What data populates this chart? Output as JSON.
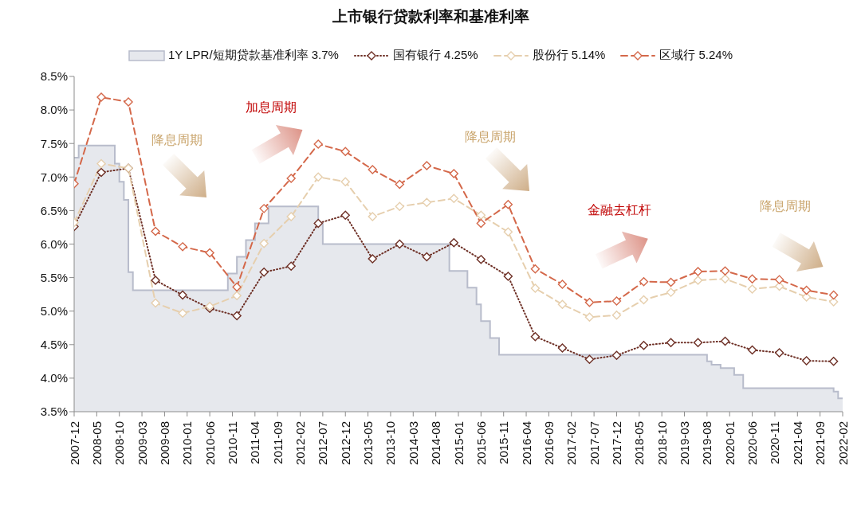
{
  "chart_data": {
    "type": "line",
    "title": "上市银行贷款利率和基准利率",
    "x": [
      "2007-12",
      "2008-06",
      "2008-12",
      "2009-06",
      "2009-12",
      "2010-06",
      "2010-12",
      "2011-06",
      "2011-12",
      "2012-06",
      "2012-12",
      "2013-06",
      "2013-12",
      "2014-06",
      "2014-12",
      "2015-06",
      "2015-12",
      "2016-06",
      "2016-12",
      "2017-06",
      "2017-12",
      "2018-06",
      "2018-12",
      "2019-06",
      "2019-12",
      "2020-06",
      "2020-12",
      "2021-06",
      "2021-12"
    ],
    "series": [
      {
        "name": "1Y LPR/短期贷款基准利率 3.7%",
        "type": "area",
        "color": "#b8bccb",
        "x": [
          "2007-12",
          "2008-01",
          "2008-01",
          "2008-09",
          "2008-09",
          "2008-10",
          "2008-10",
          "2008-11",
          "2008-11",
          "2008-12",
          "2008-12",
          "2009-01",
          "2009-01",
          "2010-10",
          "2010-10",
          "2010-12",
          "2010-12",
          "2011-02",
          "2011-02",
          "2011-04",
          "2011-04",
          "2011-07",
          "2011-07",
          "2012-06",
          "2012-06",
          "2012-07",
          "2012-07",
          "2014-11",
          "2014-11",
          "2015-03",
          "2015-03",
          "2015-05",
          "2015-05",
          "2015-06",
          "2015-06",
          "2015-08",
          "2015-08",
          "2015-10",
          "2015-10",
          "2019-08",
          "2019-08",
          "2019-09",
          "2019-09",
          "2019-11",
          "2019-11",
          "2020-02",
          "2020-02",
          "2020-04",
          "2020-04",
          "2021-12",
          "2021-12",
          "2022-01",
          "2022-01",
          "2022-02"
        ],
        "values": [
          7.29,
          7.29,
          7.47,
          7.47,
          7.2,
          7.2,
          6.93,
          6.93,
          6.66,
          6.66,
          5.58,
          5.58,
          5.31,
          5.31,
          5.56,
          5.56,
          5.81,
          5.81,
          6.06,
          6.06,
          6.31,
          6.31,
          6.56,
          6.56,
          6.31,
          6.31,
          6.0,
          6.0,
          5.6,
          5.6,
          5.35,
          5.35,
          5.1,
          5.1,
          4.85,
          4.85,
          4.6,
          4.6,
          4.35,
          4.35,
          4.25,
          4.25,
          4.2,
          4.2,
          4.15,
          4.15,
          4.05,
          4.05,
          3.85,
          3.85,
          3.8,
          3.8,
          3.7,
          3.7
        ]
      },
      {
        "name": "国有银行 4.25%",
        "color": "#6e3026",
        "line_style": "dotted",
        "marker": "diamond",
        "values": [
          6.26,
          7.07,
          7.13,
          5.46,
          5.24,
          5.04,
          4.93,
          5.58,
          5.67,
          6.31,
          6.43,
          5.78,
          6.0,
          5.81,
          6.02,
          5.77,
          5.52,
          4.62,
          4.45,
          4.28,
          4.34,
          4.49,
          4.53,
          4.53,
          4.55,
          4.42,
          4.38,
          4.26,
          4.25
        ]
      },
      {
        "name": "股份行 5.14%",
        "color": "#e6cfae",
        "line_style": "dashed",
        "marker": "diamond",
        "values": [
          6.32,
          7.2,
          7.13,
          5.12,
          4.97,
          5.07,
          5.23,
          6.01,
          6.41,
          7.0,
          6.93,
          6.41,
          6.56,
          6.62,
          6.68,
          6.43,
          6.18,
          5.34,
          5.1,
          4.91,
          4.94,
          5.17,
          5.28,
          5.46,
          5.48,
          5.33,
          5.37,
          5.21,
          5.14
        ]
      },
      {
        "name": "区域行 5.24%",
        "color": "#d4684a",
        "line_style": "dashed",
        "marker": "diamond",
        "values": [
          6.9,
          8.19,
          8.12,
          6.19,
          5.96,
          5.87,
          5.36,
          6.53,
          6.98,
          7.49,
          7.38,
          7.11,
          6.89,
          7.17,
          7.05,
          6.31,
          6.59,
          5.63,
          5.4,
          5.13,
          5.15,
          5.44,
          5.43,
          5.59,
          5.6,
          5.48,
          5.47,
          5.31,
          5.24
        ]
      }
    ],
    "xlim": [
      "2007-12",
      "2022-02"
    ],
    "xticks": [
      "2007-12",
      "2008-05",
      "2008-10",
      "2009-03",
      "2009-08",
      "2010-01",
      "2010-06",
      "2010-11",
      "2011-04",
      "2011-09",
      "2012-02",
      "2012-07",
      "2012-12",
      "2013-05",
      "2013-10",
      "2014-03",
      "2014-08",
      "2015-01",
      "2015-06",
      "2015-11",
      "2016-04",
      "2016-09",
      "2017-02",
      "2017-07",
      "2017-12",
      "2018-05",
      "2018-10",
      "2019-03",
      "2019-08",
      "2020-01",
      "2020-06",
      "2020-11",
      "2021-04",
      "2021-09",
      "2022-02"
    ],
    "ylim": [
      3.5,
      8.5
    ],
    "yticks": [
      {
        "value": 3.5,
        "label": "3.5%"
      },
      {
        "value": 4.0,
        "label": "4.0%"
      },
      {
        "value": 4.5,
        "label": "4.5%"
      },
      {
        "value": 5.0,
        "label": "5.0%"
      },
      {
        "value": 5.5,
        "label": "5.5%"
      },
      {
        "value": 6.0,
        "label": "6.0%"
      },
      {
        "value": 6.5,
        "label": "6.5%"
      },
      {
        "value": 7.0,
        "label": "7.0%"
      },
      {
        "value": 7.5,
        "label": "7.5%"
      },
      {
        "value": 8.0,
        "label": "8.0%"
      },
      {
        "value": 8.5,
        "label": "8.5%"
      }
    ],
    "legend": "top",
    "annotations": [
      "降息周期",
      "加息周期",
      "降息周期",
      "金融去杠杆",
      "降息周期"
    ]
  }
}
